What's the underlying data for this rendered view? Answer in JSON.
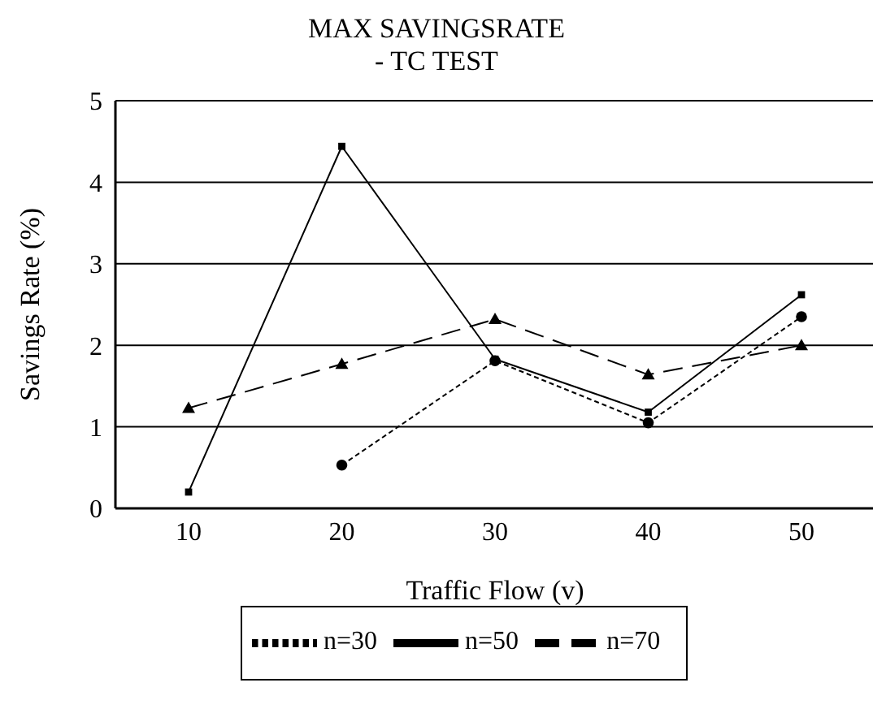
{
  "chart_data": {
    "type": "line",
    "title": "MAX SAVINGSRATE\n- TC TEST",
    "xlabel": "Traffic Flow (v)",
    "ylabel": "Savings Rate (%)",
    "categories": [
      "10",
      "20",
      "30",
      "40",
      "50"
    ],
    "series": [
      {
        "name": "n=30",
        "color": "#000000",
        "values": [
          null,
          0.53,
          1.81,
          1.05,
          2.35
        ],
        "marker": "circle",
        "line_style": "dotted"
      },
      {
        "name": "n=50",
        "color": "#000000",
        "values": [
          0.2,
          4.44,
          1.83,
          1.18,
          2.62
        ],
        "marker": "square",
        "line_style": "solid"
      },
      {
        "name": "n=70",
        "color": "#000000",
        "values": [
          1.23,
          1.77,
          2.32,
          1.64,
          2.0
        ],
        "marker": "triangle",
        "line_style": "dashed"
      }
    ],
    "ylim": [
      0,
      5
    ],
    "yticks": [
      0,
      1,
      2,
      3,
      4,
      5
    ],
    "grid": "y",
    "legend": "bottom"
  }
}
